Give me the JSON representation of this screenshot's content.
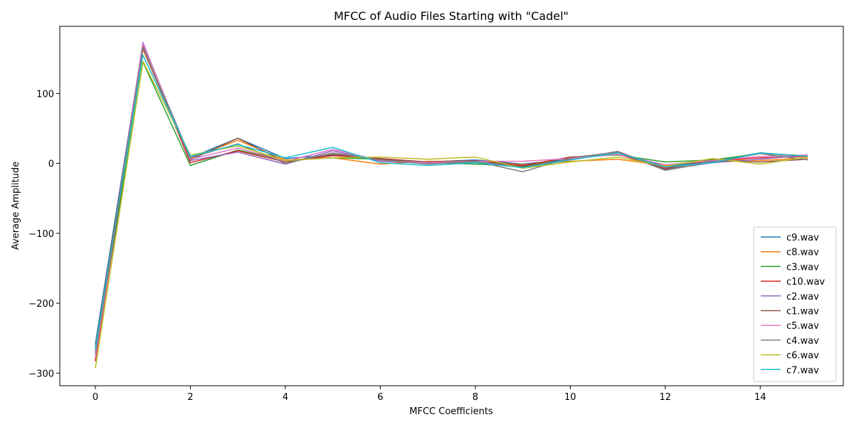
{
  "chart_data": {
    "type": "line",
    "title": "MFCC of Audio Files Starting with \"Cadel\"",
    "xlabel": "MFCC Coefficients",
    "ylabel": "Average Amplitude",
    "xlim": [
      -0.75,
      15.75
    ],
    "ylim": [
      -318,
      196
    ],
    "xticks": [
      0,
      2,
      4,
      6,
      8,
      10,
      12,
      14
    ],
    "yticks": [
      -300,
      -200,
      -100,
      0,
      100
    ],
    "grid": false,
    "legend_position": "lower-right",
    "x": [
      0,
      1,
      2,
      3,
      4,
      5,
      6,
      7,
      8,
      9,
      10,
      11,
      12,
      13,
      14,
      15
    ],
    "series": [
      {
        "name": "c9.wav",
        "color": "#1f77b4",
        "values": [
          -258,
          170,
          8,
          36,
          7,
          12,
          5,
          2,
          5,
          -1,
          6,
          15,
          -4,
          3,
          15,
          10
        ]
      },
      {
        "name": "c8.wav",
        "color": "#ff7f0e",
        "values": [
          -280,
          163,
          7,
          33,
          5,
          8,
          -1,
          3,
          3,
          -2,
          3,
          6,
          -3,
          6,
          4,
          8
        ]
      },
      {
        "name": "c3.wav",
        "color": "#2ca02c",
        "values": [
          -275,
          145,
          -3,
          19,
          4,
          8,
          6,
          1,
          -1,
          -4,
          9,
          12,
          2,
          5,
          14,
          11
        ]
      },
      {
        "name": "c10.wav",
        "color": "#d62728",
        "values": [
          -283,
          167,
          1,
          18,
          2,
          11,
          7,
          2,
          4,
          -3,
          9,
          13,
          -7,
          4,
          8,
          10
        ]
      },
      {
        "name": "c2.wav",
        "color": "#9467bd",
        "values": [
          -268,
          173,
          4,
          16,
          -1,
          18,
          3,
          0,
          2,
          -6,
          5,
          17,
          -9,
          1,
          6,
          12
        ]
      },
      {
        "name": "c1.wav",
        "color": "#8c564b",
        "values": [
          -262,
          165,
          5,
          36,
          2,
          13,
          6,
          2,
          4,
          -5,
          6,
          17,
          -8,
          4,
          2,
          6
        ]
      },
      {
        "name": "c5.wav",
        "color": "#e377c2",
        "values": [
          -278,
          171,
          6,
          22,
          3,
          20,
          4,
          1,
          3,
          3,
          7,
          13,
          -2,
          4,
          10,
          12
        ]
      },
      {
        "name": "c4.wav",
        "color": "#7f7f7f",
        "values": [
          -272,
          166,
          8,
          28,
          0,
          15,
          5,
          -1,
          3,
          -12,
          8,
          16,
          -10,
          2,
          14,
          5
        ]
      },
      {
        "name": "c6.wav",
        "color": "#bcbd22",
        "values": [
          -293,
          146,
          12,
          25,
          4,
          8,
          9,
          6,
          9,
          -7,
          2,
          9,
          -4,
          7,
          -1,
          9
        ]
      },
      {
        "name": "c7.wav",
        "color": "#17becf",
        "values": [
          -265,
          155,
          10,
          27,
          8,
          23,
          1,
          -3,
          1,
          -6,
          5,
          15,
          -5,
          1,
          15,
          10
        ]
      }
    ]
  }
}
